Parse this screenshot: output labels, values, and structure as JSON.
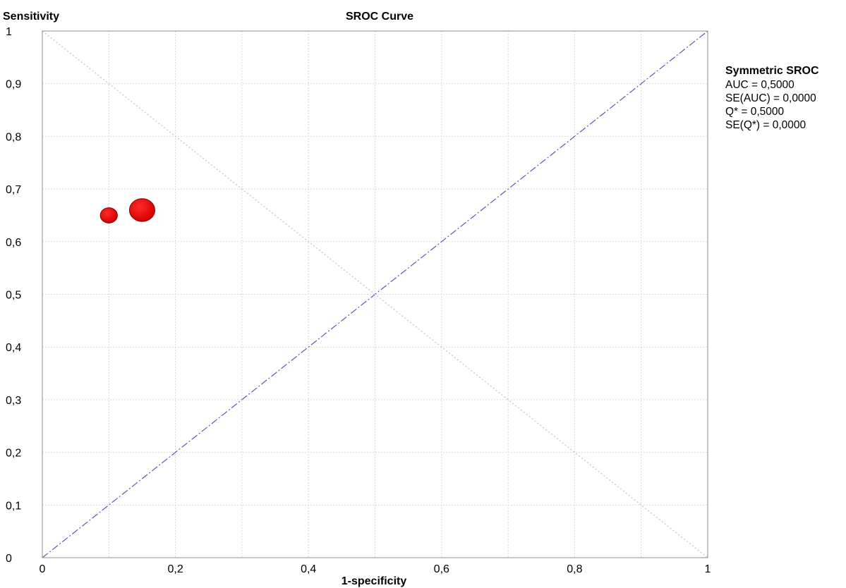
{
  "chart_data": {
    "type": "scatter",
    "title": "SROC Curve",
    "xlabel": "1-specificity",
    "ylabel": "Sensitivity",
    "xlim": [
      0,
      1
    ],
    "ylim": [
      0,
      1
    ],
    "grid": true,
    "x_ticks": [
      0,
      0.1,
      0.2,
      0.3,
      0.4,
      0.5,
      0.6,
      0.7,
      0.8,
      0.9,
      1
    ],
    "x_tick_labels": [
      "0",
      "0,2",
      "0,4",
      "0,6",
      "0,8",
      "1"
    ],
    "y_tick_labels": [
      "0",
      "0,1",
      "0,2",
      "0,3",
      "0,4",
      "0,5",
      "0,6",
      "0,7",
      "0,8",
      "0,9",
      "1"
    ],
    "points": [
      {
        "x": 0.1,
        "y": 0.65,
        "relative_weight": 0.45
      },
      {
        "x": 0.15,
        "y": 0.66,
        "relative_weight": 1.0
      }
    ],
    "reference_lines": [
      {
        "type": "diagonal",
        "from": [
          0,
          0
        ],
        "to": [
          1,
          1
        ],
        "style": "dash-dot",
        "color": "#5a5ab4"
      },
      {
        "type": "anti-diagonal",
        "from": [
          0,
          1
        ],
        "to": [
          1,
          0
        ],
        "style": "dotted",
        "color": "#c8c8c8"
      }
    ],
    "point_color": "#ff0000",
    "legend": {
      "placement": "right",
      "title": "Symmetric SROC",
      "lines": [
        "AUC = 0,5000",
        "SE(AUC) = 0,0000",
        "Q* = 0,5000",
        "SE(Q*) = 0,0000"
      ]
    }
  }
}
